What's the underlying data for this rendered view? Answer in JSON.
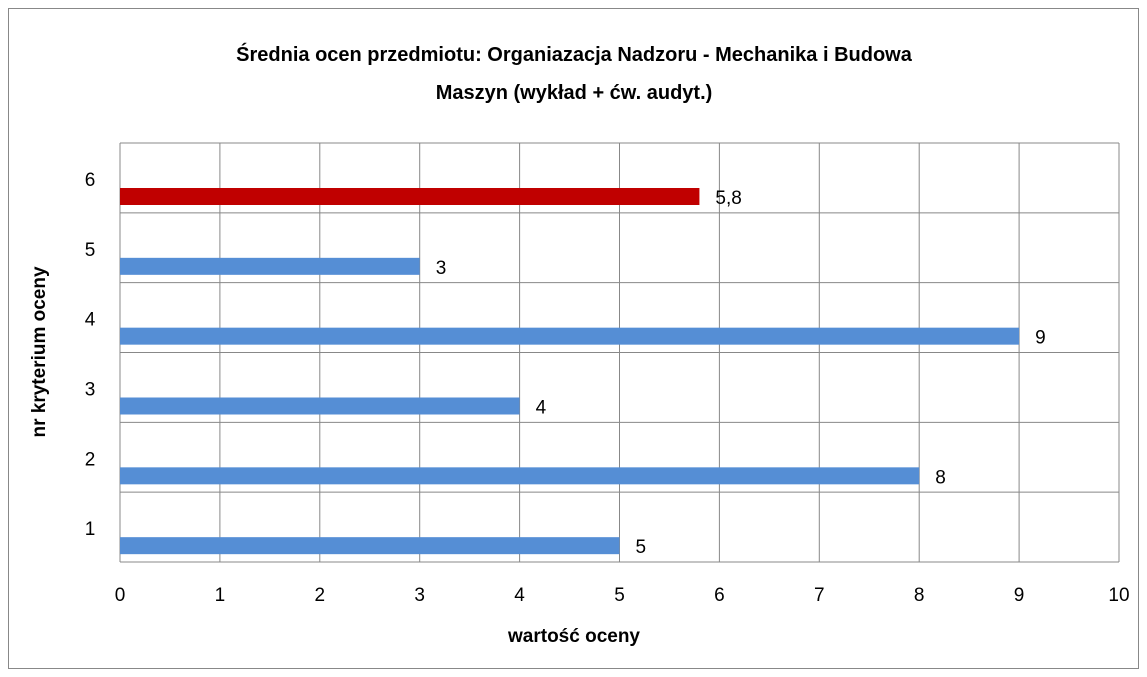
{
  "chart_data": {
    "type": "bar",
    "orientation": "horizontal",
    "title": "Średnia ocen przedmiotu: Organiazacja Nadzoru - Mechanika i Budowa Maszyn (wykład + ćw. audyt.)",
    "x_label": "wartość oceny",
    "y_label": "nr kryterium oceny",
    "categories": [
      "1",
      "2",
      "3",
      "4",
      "5",
      "6"
    ],
    "values": [
      5,
      8,
      4,
      9,
      3,
      5.8
    ],
    "value_labels": [
      "5",
      "8",
      "4",
      "9",
      "3",
      "5,8"
    ],
    "colors": [
      "#558ed5",
      "#558ed5",
      "#558ed5",
      "#558ed5",
      "#558ed5",
      "#c00000"
    ],
    "xlim": [
      0,
      10
    ],
    "xticks": [
      0,
      1,
      2,
      3,
      4,
      5,
      6,
      7,
      8,
      9,
      10
    ],
    "grid": true
  }
}
